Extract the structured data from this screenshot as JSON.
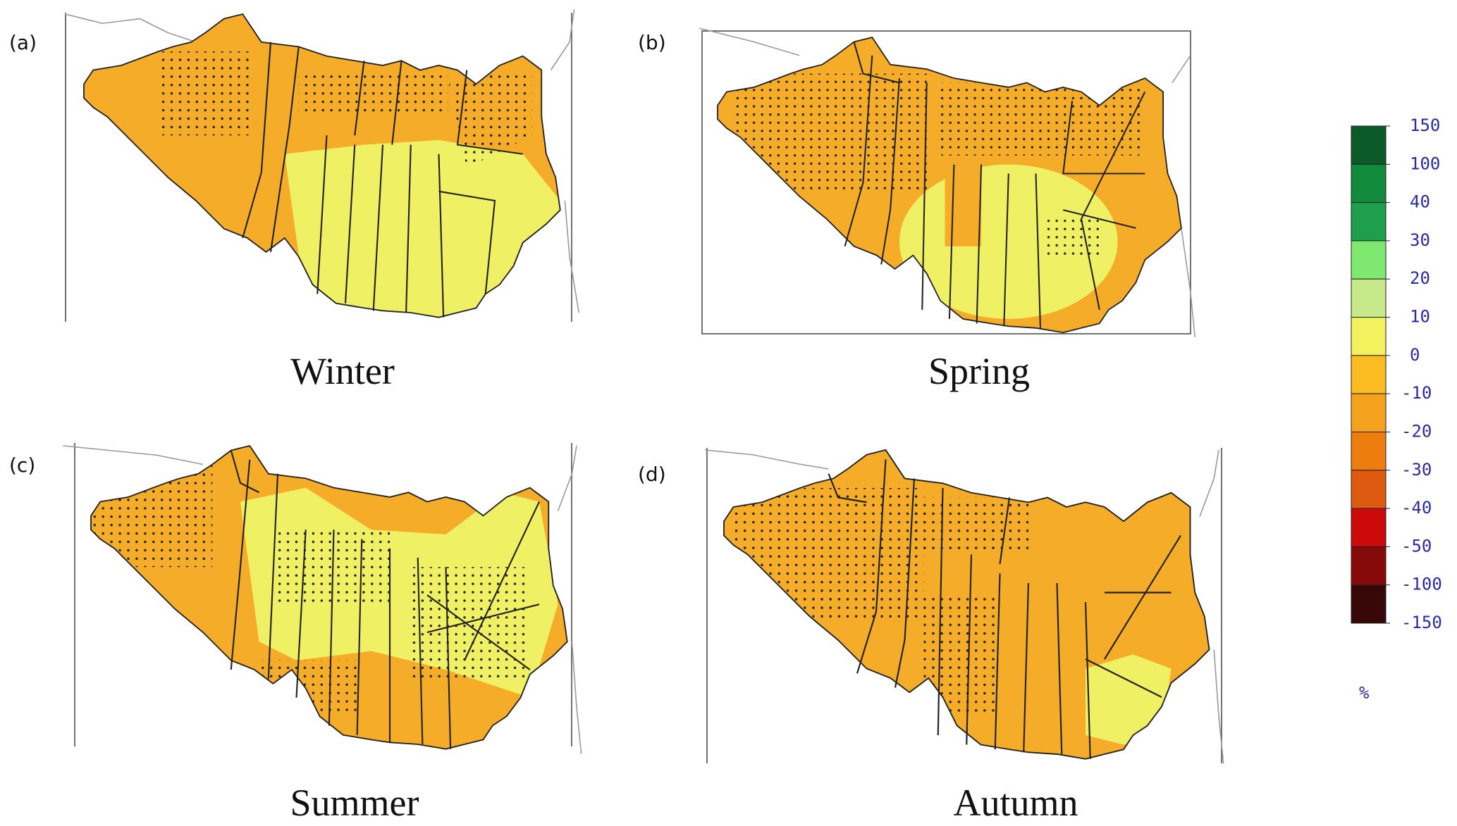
{
  "panels": [
    {
      "label": "(a)",
      "title": "Winter"
    },
    {
      "label": "(b)",
      "title": "Spring"
    },
    {
      "label": "(c)",
      "title": "Summer"
    },
    {
      "label": "(d)",
      "title": "Autumn"
    }
  ],
  "colorbar": {
    "ticks": [
      150,
      100,
      40,
      30,
      20,
      10,
      0,
      -10,
      -20,
      -30,
      -40,
      -50,
      -100,
      -150
    ],
    "colors": [
      "#0b5a28",
      "#118a3c",
      "#1f9e4c",
      "#7fe870",
      "#c6e98a",
      "#f2f25e",
      "#fbbb22",
      "#f5a21e",
      "#ee7d10",
      "#de5a10",
      "#cc0a0a",
      "#860a0a",
      "#380808"
    ],
    "unit": "%"
  }
}
